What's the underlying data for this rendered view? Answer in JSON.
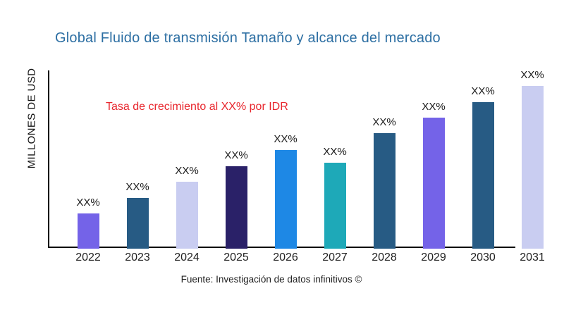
{
  "title": {
    "text": "Global Fluido de transmisión Tamaño y alcance del mercado",
    "color": "#2d6fa3"
  },
  "annotation": {
    "text": "Tasa de crecimiento al XX% por IDR",
    "color": "#e8262d"
  },
  "y_axis_label": "MILLONES DE USD",
  "source": "Fuente: Investigación de datos infinitivos ©",
  "chart_data": {
    "type": "bar",
    "title": "Global Fluido de transmisión Tamaño y alcance del mercado",
    "xlabel": "",
    "ylabel": "MILLONES DE USD",
    "categories": [
      "2022",
      "2023",
      "2024",
      "2025",
      "2026",
      "2027",
      "2028",
      "2029",
      "2030",
      "2031"
    ],
    "values_relative": [
      50,
      72,
      95,
      117,
      140,
      122,
      164,
      186,
      208,
      231
    ],
    "bar_value_labels": [
      "XX%",
      "XX%",
      "XX%",
      "XX%",
      "XX%",
      "XX%",
      "XX%",
      "XX%",
      "XX%",
      "XX%"
    ],
    "bar_colors": [
      "#7463e8",
      "#275b84",
      "#c9cdf1",
      "#2a2168",
      "#1e88e5",
      "#1ea9b8",
      "#275b84",
      "#7463e8",
      "#275b84",
      "#c9cdf1"
    ],
    "axis_color": "#000000",
    "grid": false,
    "legend": false,
    "y_tick_labels_visible": false,
    "annotation": "Tasa de crecimiento al XX% por IDR"
  }
}
